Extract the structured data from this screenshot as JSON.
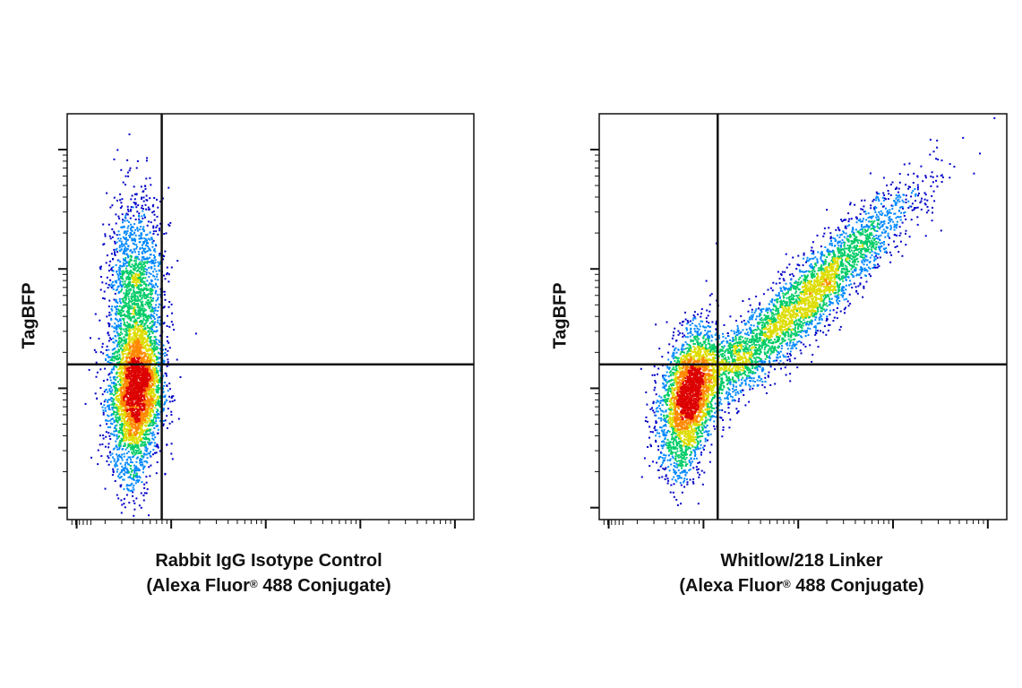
{
  "chart_data": [
    {
      "type": "scatter",
      "subtype": "flow-cytometry-density-dot-plot",
      "ylabel": "TagBFP",
      "xlabel_line1": "Rabbit IgG Isotype Control",
      "xlabel_line2_pre": "(Alexa Fluor",
      "xlabel_line2_sup": "®",
      "xlabel_line2_post": " 488 Conjugate)",
      "x_scale": "log",
      "y_scale": "log",
      "xlim": [
        -0.1,
        4.2
      ],
      "ylim": [
        -0.1,
        3.3
      ],
      "gate": {
        "x": 0.9,
        "y": 1.2
      },
      "colors": [
        "#0000c8",
        "#0088ff",
        "#00cc66",
        "#dddd00",
        "#ff8800",
        "#dd0000"
      ],
      "populations": [
        {
          "name": "",
          "cx": 0.62,
          "cy": 0.93,
          "sx": 0.14,
          "sy": 0.28,
          "rho": 0.1,
          "n": 2600
        },
        {
          "name": "",
          "cx": 0.62,
          "cy": 1.75,
          "sx": 0.15,
          "sy": 0.42,
          "rho": 0.05,
          "n": 1700
        },
        {
          "name": "",
          "cx": 0.72,
          "cy": 1.22,
          "sx": 0.12,
          "sy": 0.18,
          "rho": 0.0,
          "n": 250
        },
        {
          "name": "",
          "cx": 0.6,
          "cy": 0.3,
          "sx": 0.09,
          "sy": 0.15,
          "rho": 0.0,
          "n": 150
        }
      ]
    },
    {
      "type": "scatter",
      "subtype": "flow-cytometry-density-dot-plot",
      "ylabel": "TagBFP",
      "xlabel_line1": "Whitlow/218 Linker",
      "xlabel_line2_pre": "(Alexa Fluor",
      "xlabel_line2_sup": "®",
      "xlabel_line2_post": " 488 Conjugate)",
      "x_scale": "log",
      "y_scale": "log",
      "xlim": [
        -0.1,
        4.2
      ],
      "ylim": [
        -0.1,
        3.3
      ],
      "gate": {
        "x": 1.15,
        "y": 1.2
      },
      "colors": [
        "#0000c8",
        "#0088ff",
        "#00cc66",
        "#dddd00",
        "#ff8800",
        "#dd0000"
      ],
      "populations": [
        {
          "name": "",
          "cx": 0.85,
          "cy": 0.95,
          "sx": 0.15,
          "sy": 0.27,
          "rho": 0.35,
          "n": 2600
        },
        {
          "name": "",
          "cx": 2.1,
          "cy": 1.75,
          "sx": 0.55,
          "sy": 0.45,
          "rho": 0.93,
          "n": 3200
        },
        {
          "name": "",
          "cx": 1.25,
          "cy": 1.25,
          "sx": 0.18,
          "sy": 0.15,
          "rho": 0.5,
          "n": 400
        },
        {
          "name": "",
          "cx": 0.8,
          "cy": 0.4,
          "sx": 0.1,
          "sy": 0.15,
          "rho": 0.2,
          "n": 150
        }
      ]
    }
  ]
}
